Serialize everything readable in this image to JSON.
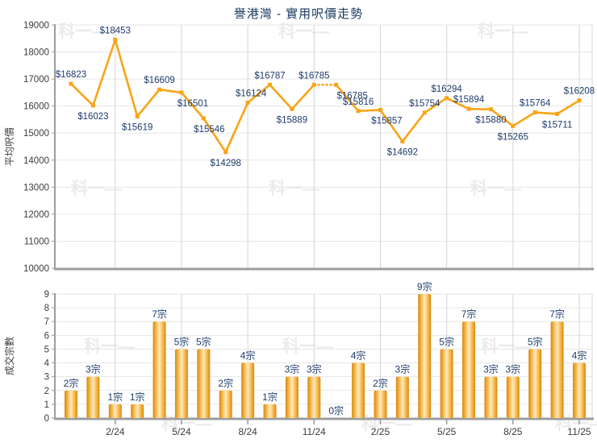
{
  "title": "譽港灣 - 實用呎價走勢",
  "watermark_text": "科一",
  "colors": {
    "accent_line": "#F9A416",
    "label_navy": "#1E3C6B",
    "tick_text": "#3C3C3C",
    "grid_h": "#E6E6E6",
    "grid_v": "#D4D4D4",
    "axis": "#9C9C9C",
    "bar_edge_dark": "#D9880C",
    "bar_mid": "#F9BE55",
    "bar_center_light": "#FFEAC0",
    "watermark": "#EBEBEB",
    "background": "#FFFFFF"
  },
  "chart_data": [
    {
      "type": "line",
      "name": "price-trend",
      "title": "譽港灣 - 實用呎價走勢",
      "ylabel": "平均呎價",
      "ylim": [
        10000,
        19000
      ],
      "yticks": [
        "19000",
        "18000",
        "17000",
        "16000",
        "15000",
        "14000",
        "13000",
        "12000",
        "11000",
        "10000"
      ],
      "x_tick_labels": [
        "2/24",
        "5/24",
        "8/24",
        "11/24",
        "2/25",
        "5/25",
        "8/25",
        "11/25"
      ],
      "x_tick_indices": [
        2,
        5,
        8,
        11,
        14,
        17,
        20,
        23
      ],
      "values": [
        16823,
        16023,
        18453,
        15619,
        16609,
        16501,
        15546,
        14298,
        16124,
        16787,
        15889,
        16785,
        16785,
        15816,
        15857,
        14692,
        15754,
        16294,
        15894,
        15880,
        15265,
        15764,
        15711,
        16208
      ],
      "labels": [
        "$16823",
        "$16023",
        "$18453",
        "$15619",
        "$16609",
        "$16501",
        "$15546",
        "$14298",
        "$16124",
        "$16787",
        "$15889",
        "$16785",
        "$16785",
        "$15816",
        "$15857",
        "$14692",
        "$15754",
        "$16294",
        "$15894",
        "$15880",
        "$15265",
        "$15764",
        "$15711",
        "$16208"
      ],
      "label_pos": [
        "above",
        "below",
        "above",
        "below",
        "above",
        "below",
        "below",
        "below",
        "above",
        "above",
        "below",
        "above",
        "below",
        "above",
        "below",
        "below",
        "above",
        "above",
        "above",
        "below",
        "below",
        "above",
        "below",
        "above"
      ],
      "label_dx": [
        0,
        0,
        0,
        0,
        0,
        14,
        7,
        0,
        4,
        0,
        0,
        0,
        20,
        0,
        8,
        0,
        0,
        0,
        0,
        0,
        0,
        0,
        0,
        0
      ],
      "dashed_segment": [
        11,
        12
      ],
      "grid": true,
      "legend": "none"
    },
    {
      "type": "bar",
      "name": "transaction-count",
      "ylabel": "成交宗數",
      "ylim": [
        0,
        9
      ],
      "yticks": [
        "9",
        "8",
        "7",
        "6",
        "5",
        "4",
        "3",
        "2",
        "1",
        "0"
      ],
      "x_tick_labels": [
        "2/24",
        "5/24",
        "8/24",
        "11/24",
        "2/25",
        "5/25",
        "8/25",
        "11/25"
      ],
      "x_tick_indices": [
        2,
        5,
        8,
        11,
        14,
        17,
        20,
        23
      ],
      "values": [
        2,
        3,
        1,
        1,
        7,
        5,
        5,
        2,
        4,
        1,
        3,
        3,
        0,
        4,
        2,
        3,
        9,
        5,
        7,
        3,
        3,
        5,
        7,
        4
      ],
      "labels": [
        "2宗",
        "3宗",
        "1宗",
        "1宗",
        "7宗",
        "5宗",
        "5宗",
        "2宗",
        "4宗",
        "1宗",
        "3宗",
        "3宗",
        "0宗",
        "4宗",
        "2宗",
        "3宗",
        "9宗",
        "5宗",
        "7宗",
        "3宗",
        "3宗",
        "5宗",
        "7宗",
        "4宗"
      ],
      "grid": true,
      "legend": "none"
    }
  ]
}
